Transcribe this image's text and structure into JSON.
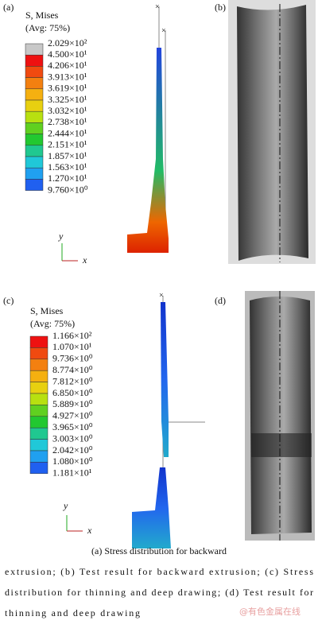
{
  "panels": [
    {
      "label": "(a)",
      "legend_title": "S, Mises",
      "legend_subtitle": "(Avg: 75%)",
      "legend_labels": [
        "2.029×10²",
        "4.500×10¹",
        "4.206×10¹",
        "3.913×10¹",
        "3.619×10¹",
        "3.325×10¹",
        "3.032×10¹",
        "2.738×10¹",
        "2.444×10¹",
        "2.151×10¹",
        "1.857×10¹",
        "1.563×10¹",
        "1.270×10¹",
        "9.760×10⁰"
      ],
      "axis_y": "y",
      "axis_x": "x"
    },
    {
      "label": "(b)"
    },
    {
      "label": "(c)",
      "legend_title": "S, Mises",
      "legend_subtitle": "(Avg: 75%)",
      "legend_labels": [
        "1.166×10²",
        "1.070×10¹",
        "9.736×10⁰",
        "8.774×10⁰",
        "7.812×10⁰",
        "6.850×10⁰",
        "5.889×10⁰",
        "4.927×10⁰",
        "3.965×10⁰",
        "3.003×10⁰",
        "2.042×10⁰",
        "1.080×10⁰",
        "1.181×10¹"
      ],
      "axis_y": "y",
      "axis_x": "x"
    },
    {
      "label": "(d)"
    }
  ],
  "caption": [
    "(a) Stress distribution for backward",
    "extrusion; (b) Test result for backward extrusion; (c) Stress",
    "distribution for thinning and deep drawing; (d) Test result for",
    "thinning and deep drawing"
  ],
  "watermark": "@有色金属在线"
}
